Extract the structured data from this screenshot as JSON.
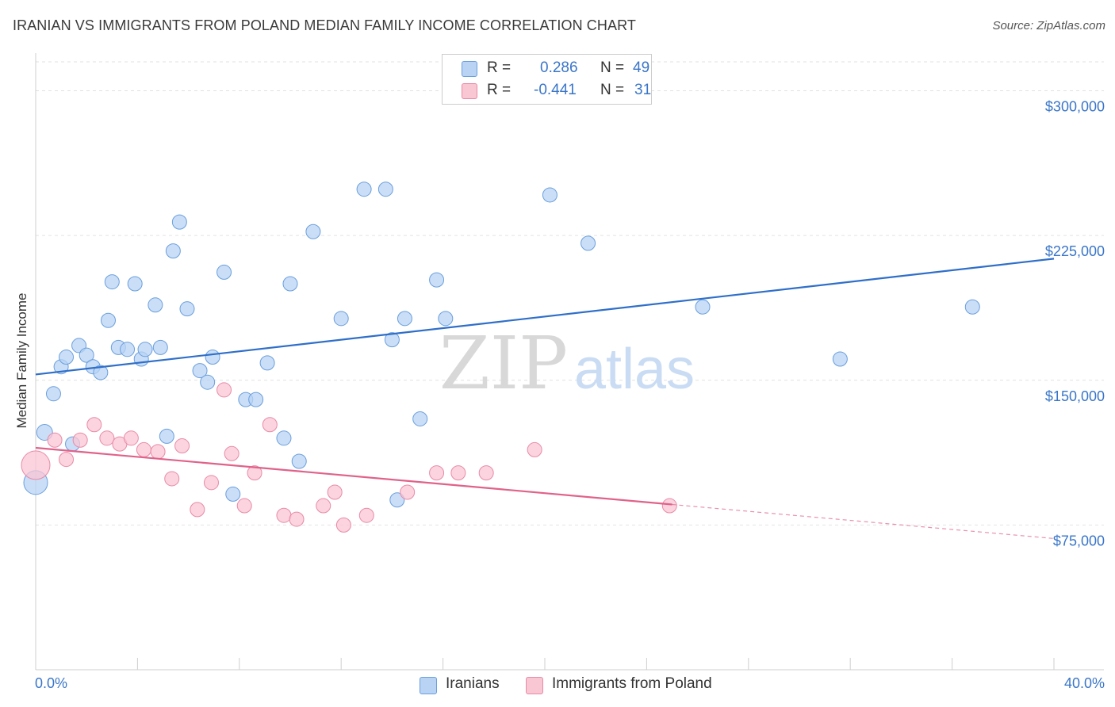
{
  "title": "IRANIAN VS IMMIGRANTS FROM POLAND MEDIAN FAMILY INCOME CORRELATION CHART",
  "source": "Source: ZipAtlas.com",
  "watermark": {
    "zip": "ZIP",
    "atlas": "atlas"
  },
  "legend_top": {
    "rows": [
      {
        "r_label": "R =",
        "r_value": "0.286",
        "n_label": "N =",
        "n_value": "49",
        "color": "#b8d3f4"
      },
      {
        "r_label": "R =",
        "r_value": "-0.441",
        "n_label": "N =",
        "n_value": "31",
        "color": "#f9c6d4"
      }
    ]
  },
  "legend_bottom": [
    {
      "label": "Iranians",
      "color": "#b8d3f4"
    },
    {
      "label": "Immigrants from Poland",
      "color": "#f9c6d4"
    }
  ],
  "x_tick_labels": {
    "min": "0.0%",
    "max": "40.0%"
  },
  "chart_data": {
    "type": "scatter",
    "title": "IRANIAN VS IMMIGRANTS FROM POLAND MEDIAN FAMILY INCOME CORRELATION CHART",
    "xlabel": "",
    "ylabel": "Median Family Income",
    "xlim": [
      0,
      40
    ],
    "ylim": [
      0,
      315000
    ],
    "y_ticks": [
      {
        "value": 75000,
        "label": "$75,000"
      },
      {
        "value": 150000,
        "label": "$150,000"
      },
      {
        "value": 225000,
        "label": "$225,000"
      },
      {
        "value": 300000,
        "label": "$300,000"
      }
    ],
    "grid": true,
    "legend_position": "top-center",
    "series": [
      {
        "name": "Iranians",
        "color": "#b8d3f4",
        "stroke": "#6a9fdc",
        "trend_color": "#2f6fc9",
        "trend": {
          "x0": 0,
          "y0": 153000,
          "x1": 40,
          "y1": 213000,
          "dash_from": null
        },
        "points": [
          [
            0.35,
            123000,
            10
          ],
          [
            0,
            97000,
            15
          ],
          [
            0.7,
            143000,
            9
          ],
          [
            1.0,
            157000,
            9
          ],
          [
            1.2,
            162000,
            9
          ],
          [
            1.45,
            117000,
            9
          ],
          [
            1.7,
            168000,
            9
          ],
          [
            2.0,
            163000,
            9
          ],
          [
            2.25,
            157000,
            9
          ],
          [
            2.55,
            154000,
            9
          ],
          [
            2.85,
            181000,
            9
          ],
          [
            3.0,
            201000,
            9
          ],
          [
            3.25,
            167000,
            9
          ],
          [
            3.6,
            166000,
            9
          ],
          [
            3.9,
            200000,
            9
          ],
          [
            4.15,
            161000,
            9
          ],
          [
            4.3,
            166000,
            9
          ],
          [
            4.7,
            189000,
            9
          ],
          [
            4.9,
            167000,
            9
          ],
          [
            5.15,
            121000,
            9
          ],
          [
            5.4,
            217000,
            9
          ],
          [
            5.65,
            232000,
            9
          ],
          [
            5.95,
            187000,
            9
          ],
          [
            6.45,
            155000,
            9
          ],
          [
            6.75,
            149000,
            9
          ],
          [
            6.95,
            162000,
            9
          ],
          [
            7.4,
            206000,
            9
          ],
          [
            7.75,
            91000,
            9
          ],
          [
            8.25,
            140000,
            9
          ],
          [
            8.65,
            140000,
            9
          ],
          [
            9.1,
            159000,
            9
          ],
          [
            9.75,
            120000,
            9
          ],
          [
            10.0,
            200000,
            9
          ],
          [
            10.35,
            108000,
            9
          ],
          [
            10.9,
            227000,
            9
          ],
          [
            12.0,
            182000,
            9
          ],
          [
            12.9,
            249000,
            9
          ],
          [
            13.75,
            249000,
            9
          ],
          [
            14.0,
            171000,
            9
          ],
          [
            14.2,
            88000,
            9
          ],
          [
            14.5,
            182000,
            9
          ],
          [
            15.1,
            130000,
            9
          ],
          [
            15.75,
            202000,
            9
          ],
          [
            16.1,
            182000,
            9
          ],
          [
            20.2,
            246000,
            9
          ],
          [
            21.7,
            221000,
            9
          ],
          [
            26.2,
            188000,
            9
          ],
          [
            31.6,
            161000,
            9
          ],
          [
            36.8,
            188000,
            9
          ]
        ]
      },
      {
        "name": "Immigrants from Poland",
        "color": "#f9c6d4",
        "stroke": "#e88aa6",
        "trend_color": "#e0628a",
        "trend": {
          "x0": 0,
          "y0": 115000,
          "x1": 40,
          "y1": 68000,
          "dash_from": 25
        },
        "points": [
          [
            0,
            106000,
            18
          ],
          [
            0.75,
            119000,
            9
          ],
          [
            1.2,
            109000,
            9
          ],
          [
            1.75,
            119000,
            9
          ],
          [
            2.3,
            127000,
            9
          ],
          [
            2.8,
            120000,
            9
          ],
          [
            3.3,
            117000,
            9
          ],
          [
            3.75,
            120000,
            9
          ],
          [
            4.25,
            114000,
            9
          ],
          [
            4.8,
            113000,
            9
          ],
          [
            5.35,
            99000,
            9
          ],
          [
            5.75,
            116000,
            9
          ],
          [
            6.35,
            83000,
            9
          ],
          [
            6.9,
            97000,
            9
          ],
          [
            7.4,
            145000,
            9
          ],
          [
            7.7,
            112000,
            9
          ],
          [
            8.2,
            85000,
            9
          ],
          [
            8.6,
            102000,
            9
          ],
          [
            9.2,
            127000,
            9
          ],
          [
            9.75,
            80000,
            9
          ],
          [
            10.25,
            78000,
            9
          ],
          [
            11.3,
            85000,
            9
          ],
          [
            11.75,
            92000,
            9
          ],
          [
            12.1,
            75000,
            9
          ],
          [
            13.0,
            80000,
            9
          ],
          [
            14.6,
            92000,
            9
          ],
          [
            15.75,
            102000,
            9
          ],
          [
            16.6,
            102000,
            9
          ],
          [
            17.7,
            102000,
            9
          ],
          [
            19.6,
            114000,
            9
          ],
          [
            24.9,
            85000,
            9
          ]
        ]
      }
    ]
  }
}
